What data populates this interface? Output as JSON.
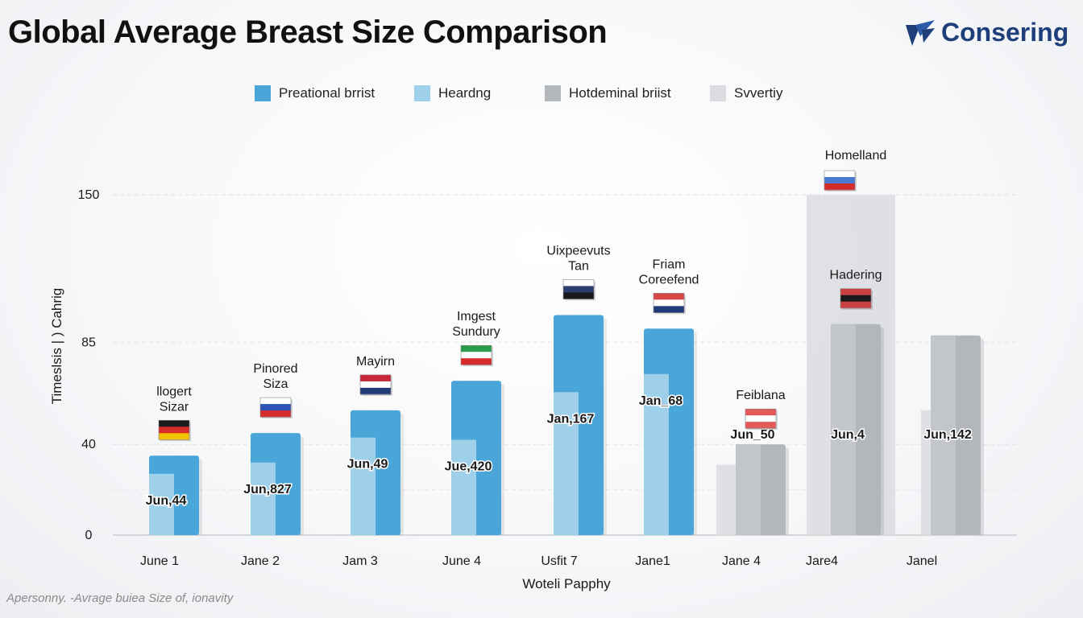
{
  "title": "Global Average Breast Size Comparison",
  "logo": {
    "text": "Consering"
  },
  "footnote": "Apersonny. -Avrage buiea Size of, ionavity",
  "colors": {
    "primary": "#4aa6d8",
    "primary_light": "#9fd0ea",
    "gray": "#b3b6bb",
    "gray_light": "#dadcdf",
    "brand": "#1f3f7a"
  },
  "legend": [
    {
      "label": "Preational brrist",
      "color": "#4aa6d8"
    },
    {
      "label": "Heardng",
      "color": "#9fd0ea"
    },
    {
      "label": "Hotdeminal briist",
      "color": "#b3b6bb"
    },
    {
      "label": "Svvertiy",
      "color": "#dadcdf"
    }
  ],
  "chart_data": {
    "type": "bar",
    "title": "Global Average Breast Size Comparison",
    "xlabel": "Woteli Papphy",
    "ylabel": "Timeslsis | ) Cahrig",
    "yticks": [
      {
        "value": 0,
        "label": "0"
      },
      {
        "value": 40,
        "label": "40"
      },
      {
        "value": 85,
        "label": "85"
      },
      {
        "value": 150,
        "label": "150"
      }
    ],
    "ylim": [
      0,
      150
    ],
    "grid": true,
    "categories": [
      "June 1",
      "Jane 2",
      "Jam 3",
      "June 4",
      "Usfit 7",
      "Jane1",
      "Jane 4",
      "Jare4",
      "Janel"
    ],
    "series": [
      {
        "name": "Preational brrist",
        "values": [
          35,
          45,
          55,
          68,
          97,
          91,
          0,
          0,
          0
        ]
      },
      {
        "name": "Heardng",
        "values": [
          27,
          32,
          43,
          42,
          63,
          71,
          0,
          0,
          0
        ]
      },
      {
        "name": "Hotdeminal briist",
        "values": [
          0,
          0,
          0,
          0,
          0,
          0,
          40,
          93,
          88
        ]
      },
      {
        "name": "Svvertiy",
        "values": [
          0,
          0,
          0,
          0,
          0,
          0,
          31,
          150,
          55
        ]
      }
    ],
    "value_labels": [
      "Jun,44",
      "Jun,827",
      "Jun,49",
      "Jue,420",
      "Jan,167",
      "Jan_68",
      "Jun_50",
      "Jun,4",
      "Jun,142"
    ],
    "annotations": [
      "llogert\nSizar",
      "Pinored\nSiza",
      "Mayirn",
      "Imgest\nSundury",
      "Uixpeevuts\nTan",
      "Friam\nCoreefend",
      "Feiblana",
      "Hadering",
      ""
    ],
    "top_annotation": "Homelland"
  }
}
